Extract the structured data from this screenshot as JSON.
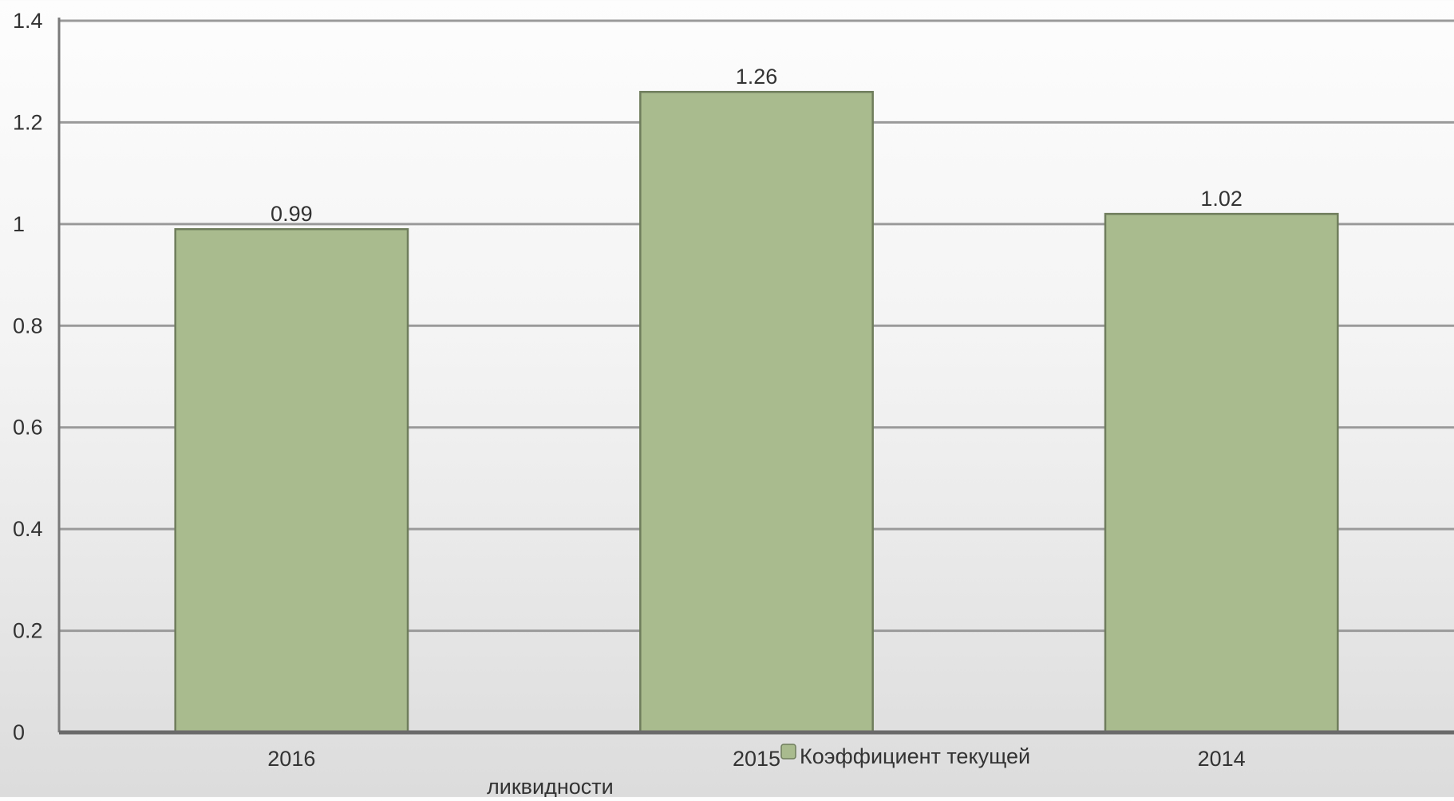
{
  "chart_data": {
    "type": "bar",
    "categories": [
      "2016",
      "2015",
      "2014"
    ],
    "series": [
      {
        "name": "Коэффициент текущей ликвидности",
        "values": [
          0.99,
          1.26,
          1.02
        ],
        "color": "#a9bb8e"
      }
    ],
    "data_labels": [
      "0.99",
      "1.26",
      "1.02"
    ],
    "y_ticks": [
      "0",
      "0.2",
      "0.4",
      "0.6",
      "0.8",
      "1",
      "1.2",
      "1.4"
    ],
    "ylim": [
      0,
      1.4
    ],
    "grid": true,
    "legend": {
      "placement": "bottom",
      "line1": "Коэффициент текущей",
      "line2": "ликвидности"
    }
  }
}
